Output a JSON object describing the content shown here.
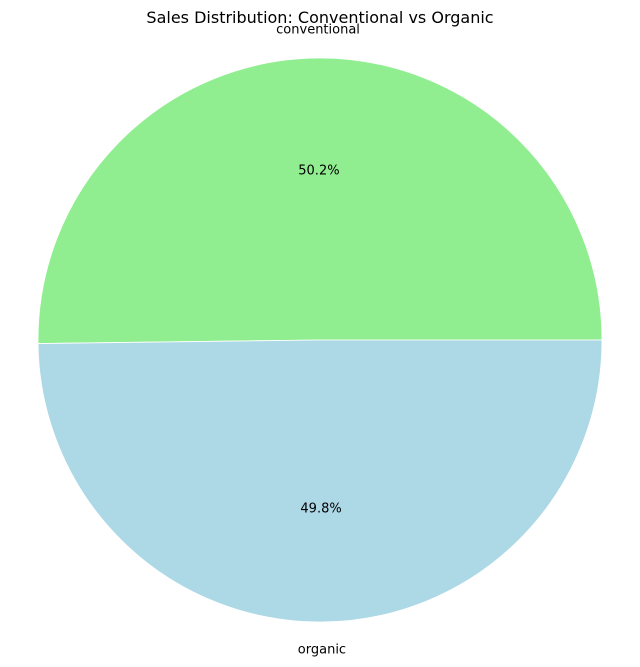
{
  "chart_data": {
    "type": "pie",
    "title": "Sales Distribution: Conventional vs Organic",
    "slices": [
      {
        "label": "conventional",
        "value": 50.2,
        "pct_label": "50.2%",
        "color": "#90ee90"
      },
      {
        "label": "organic",
        "value": 49.8,
        "pct_label": "49.8%",
        "color": "#add8e6"
      }
    ],
    "start_angle_deg": 0,
    "direction": "counterclockwise",
    "legend": "none"
  }
}
